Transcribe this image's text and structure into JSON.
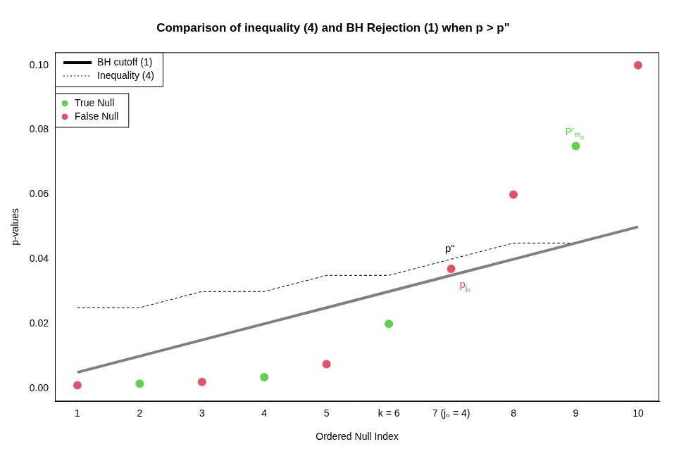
{
  "chart_data": {
    "type": "scatter",
    "title": "Comparison of inequality (4) and BH Rejection (1) when p > p\"",
    "x_label": "Ordered Null Index",
    "y_label": "p-values",
    "x": [
      1,
      2,
      3,
      4,
      5,
      6,
      7,
      8,
      9,
      10
    ],
    "xlim": [
      0.64,
      10.34
    ],
    "xticks": [
      1,
      2,
      3,
      4,
      5,
      {
        "value": 6,
        "label": "k = 6"
      },
      {
        "value": 7,
        "label": "7 (j₀ = 4)"
      },
      8,
      9,
      10
    ],
    "ylim": [
      -0.004,
      0.104
    ],
    "yticks": [
      {
        "value": 0,
        "label": "0.00"
      },
      {
        "value": 0.02,
        "label": "0.02"
      },
      {
        "value": 0.04,
        "label": "0.04"
      },
      {
        "value": 0.06,
        "label": "0.06"
      },
      {
        "value": 0.08,
        "label": "0.08"
      },
      {
        "value": 0.1,
        "label": "0.10"
      }
    ],
    "grid": false,
    "legend": "top-left",
    "series": [
      {
        "name": "BH cutoff (1)",
        "type": "line",
        "line_style": "solid",
        "marker": "none",
        "color": "#808080",
        "values": [
          0.005,
          0.01,
          0.015,
          0.02,
          0.025,
          0.03,
          0.035,
          0.04,
          0.045,
          0.05
        ]
      },
      {
        "name": "Inequality (4)",
        "type": "line",
        "line_style": "dashed",
        "marker": "none",
        "color": "#000000",
        "values": [
          0.025,
          0.025,
          0.03,
          0.03,
          0.035,
          0.035,
          0.04,
          0.045,
          0.045,
          0.05
        ]
      },
      {
        "name": "True Null",
        "type": "scatter",
        "marker": "circle",
        "color": "#61D04F",
        "values": [
          null,
          0.0015,
          null,
          0.0035,
          null,
          0.02,
          null,
          null,
          0.075,
          null
        ]
      },
      {
        "name": "False Null",
        "type": "scatter",
        "marker": "circle",
        "color": "#DF536B",
        "values": [
          0.001,
          null,
          0.002,
          null,
          0.0075,
          null,
          0.037,
          0.06,
          null,
          0.1
        ]
      }
    ],
    "annotations": [
      {
        "text": "p\"",
        "x": 6.98,
        "y": 0.0431,
        "color": "#000000"
      },
      {
        "text": "p",
        "sub": "j0",
        "x": 7.22,
        "y": 0.032,
        "color": "#DF536B"
      },
      {
        "text": "P'",
        "sub": "m0",
        "x": 8.98,
        "y": 0.0794,
        "color": "#61D04F"
      }
    ]
  }
}
